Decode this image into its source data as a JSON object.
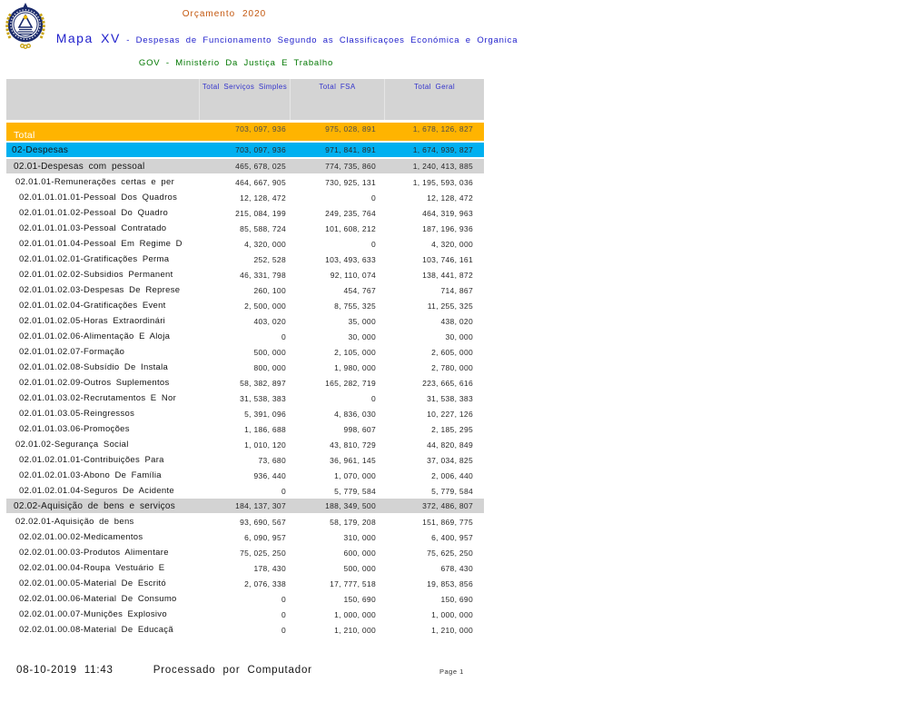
{
  "header": {
    "budget_title": "Orçamento 2020",
    "map_code": "Mapa XV",
    "map_sep": " - ",
    "map_title": "Despesas de Funcionamento Segundo as Classificaçoes Económica e Organica",
    "org_title": "GOV - Ministério Da Justiça E Trabalho"
  },
  "emblem": "coat-of-arms-cabo-verde",
  "colors": {
    "total_row_bg": "#FFB400",
    "despesas_row_bg": "#00B0F0",
    "section_row_bg": "#D3D3D3",
    "header_bg": "#D4D4D4",
    "header_text": "#3333CC",
    "title_orange": "#C45911",
    "title_blue": "#2121CC",
    "title_green": "#007700"
  },
  "table": {
    "columns": [
      "Total Serviços Simples",
      "Total FSA",
      "Total Geral"
    ],
    "rows": [
      {
        "label": "Total",
        "values": [
          "703, 097, 936",
          "975, 028, 891",
          "1, 678, 126, 827"
        ],
        "style": "total"
      },
      {
        "label": "02-Despesas",
        "values": [
          "703, 097, 936",
          "971, 841, 891",
          "1, 674, 939, 827"
        ],
        "style": "despesas"
      },
      {
        "label": "02.01-Despesas com pessoal",
        "values": [
          "465, 678, 025",
          "774, 735, 860",
          "1, 240, 413, 885"
        ],
        "style": "section"
      },
      {
        "label": "02.01.01-Remunerações certas e per",
        "values": [
          "464, 667, 905",
          "730, 925, 131",
          "1, 195, 593, 036"
        ],
        "style": "plain"
      },
      {
        "label": "02.01.01.01.01-Pessoal Dos Quadros",
        "values": [
          "12, 128, 472",
          "0",
          "12, 128, 472"
        ],
        "style": "plain"
      },
      {
        "label": "02.01.01.01.02-Pessoal Do Quadro",
        "values": [
          "215, 084, 199",
          "249, 235, 764",
          "464, 319, 963"
        ],
        "style": "plain"
      },
      {
        "label": "02.01.01.01.03-Pessoal Contratado",
        "values": [
          "85, 588, 724",
          "101, 608, 212",
          "187, 196, 936"
        ],
        "style": "plain"
      },
      {
        "label": "02.01.01.01.04-Pessoal Em Regime D",
        "values": [
          "4, 320, 000",
          "0",
          "4, 320, 000"
        ],
        "style": "plain"
      },
      {
        "label": "02.01.01.02.01-Gratificações Perma",
        "values": [
          "252, 528",
          "103, 493, 633",
          "103, 746, 161"
        ],
        "style": "plain"
      },
      {
        "label": "02.01.01.02.02-Subsidios Permanent",
        "values": [
          "46, 331, 798",
          "92, 110, 074",
          "138, 441, 872"
        ],
        "style": "plain"
      },
      {
        "label": "02.01.01.02.03-Despesas De Represe",
        "values": [
          "260, 100",
          "454, 767",
          "714, 867"
        ],
        "style": "plain"
      },
      {
        "label": "02.01.01.02.04-Gratificações Event",
        "values": [
          "2, 500, 000",
          "8, 755, 325",
          "11, 255, 325"
        ],
        "style": "plain"
      },
      {
        "label": "02.01.01.02.05-Horas Extraordinári",
        "values": [
          "403, 020",
          "35, 000",
          "438, 020"
        ],
        "style": "plain"
      },
      {
        "label": "02.01.01.02.06-Alimentação E Aloja",
        "values": [
          "0",
          "30, 000",
          "30, 000"
        ],
        "style": "plain"
      },
      {
        "label": "02.01.01.02.07-Formação",
        "values": [
          "500, 000",
          "2, 105, 000",
          "2, 605, 000"
        ],
        "style": "plain"
      },
      {
        "label": "02.01.01.02.08-Subsídio De Instala",
        "values": [
          "800, 000",
          "1, 980, 000",
          "2, 780, 000"
        ],
        "style": "plain"
      },
      {
        "label": "02.01.01.02.09-Outros Suplementos",
        "values": [
          "58, 382, 897",
          "165, 282, 719",
          "223, 665, 616"
        ],
        "style": "plain"
      },
      {
        "label": "02.01.01.03.02-Recrutamentos E Nor",
        "values": [
          "31, 538, 383",
          "0",
          "31, 538, 383"
        ],
        "style": "plain"
      },
      {
        "label": "02.01.01.03.05-Reingressos",
        "values": [
          "5, 391, 096",
          "4, 836, 030",
          "10, 227, 126"
        ],
        "style": "plain"
      },
      {
        "label": "02.01.01.03.06-Promoções",
        "values": [
          "1, 186, 688",
          "998, 607",
          "2, 185, 295"
        ],
        "style": "plain"
      },
      {
        "label": "02.01.02-Segurança Social",
        "values": [
          "1, 010, 120",
          "43, 810, 729",
          "44, 820, 849"
        ],
        "style": "plain"
      },
      {
        "label": "02.01.02.01.01-Contribuições Para",
        "values": [
          "73, 680",
          "36, 961, 145",
          "37, 034, 825"
        ],
        "style": "plain"
      },
      {
        "label": "02.01.02.01.03-Abono De Família",
        "values": [
          "936, 440",
          "1, 070, 000",
          "2, 006, 440"
        ],
        "style": "plain"
      },
      {
        "label": "02.01.02.01.04-Seguros De Acidente",
        "values": [
          "0",
          "5, 779, 584",
          "5, 779, 584"
        ],
        "style": "plain"
      },
      {
        "label": "02.02-Aquisição de bens e serviços",
        "values": [
          "184, 137, 307",
          "188, 349, 500",
          "372, 486, 807"
        ],
        "style": "section"
      },
      {
        "label": "02.02.01-Aquisição de bens",
        "values": [
          "93, 690, 567",
          "58, 179, 208",
          "151, 869, 775"
        ],
        "style": "plain"
      },
      {
        "label": "02.02.01.00.02-Medicamentos",
        "values": [
          "6, 090, 957",
          "310, 000",
          "6, 400, 957"
        ],
        "style": "plain"
      },
      {
        "label": "02.02.01.00.03-Produtos Alimentare",
        "values": [
          "75, 025, 250",
          "600, 000",
          "75, 625, 250"
        ],
        "style": "plain"
      },
      {
        "label": "02.02.01.00.04-Roupa Vestuário E",
        "values": [
          "178, 430",
          "500, 000",
          "678, 430"
        ],
        "style": "plain"
      },
      {
        "label": "02.02.01.00.05-Material De Escritó",
        "values": [
          "2, 076, 338",
          "17, 777, 518",
          "19, 853, 856"
        ],
        "style": "plain"
      },
      {
        "label": "02.02.01.00.06-Material De Consumo",
        "values": [
          "0",
          "150, 690",
          "150, 690"
        ],
        "style": "plain"
      },
      {
        "label": "02.02.01.00.07-Munições Explosivo",
        "values": [
          "0",
          "1, 000, 000",
          "1, 000, 000"
        ],
        "style": "plain"
      },
      {
        "label": "02.02.01.00.08-Material De Educaçã",
        "values": [
          "0",
          "1, 210, 000",
          "1, 210, 000"
        ],
        "style": "plain"
      }
    ]
  },
  "footer": {
    "datetime": "08-10-2019 11:43",
    "processed_by": "Processado por Computador",
    "page": "Page 1"
  }
}
